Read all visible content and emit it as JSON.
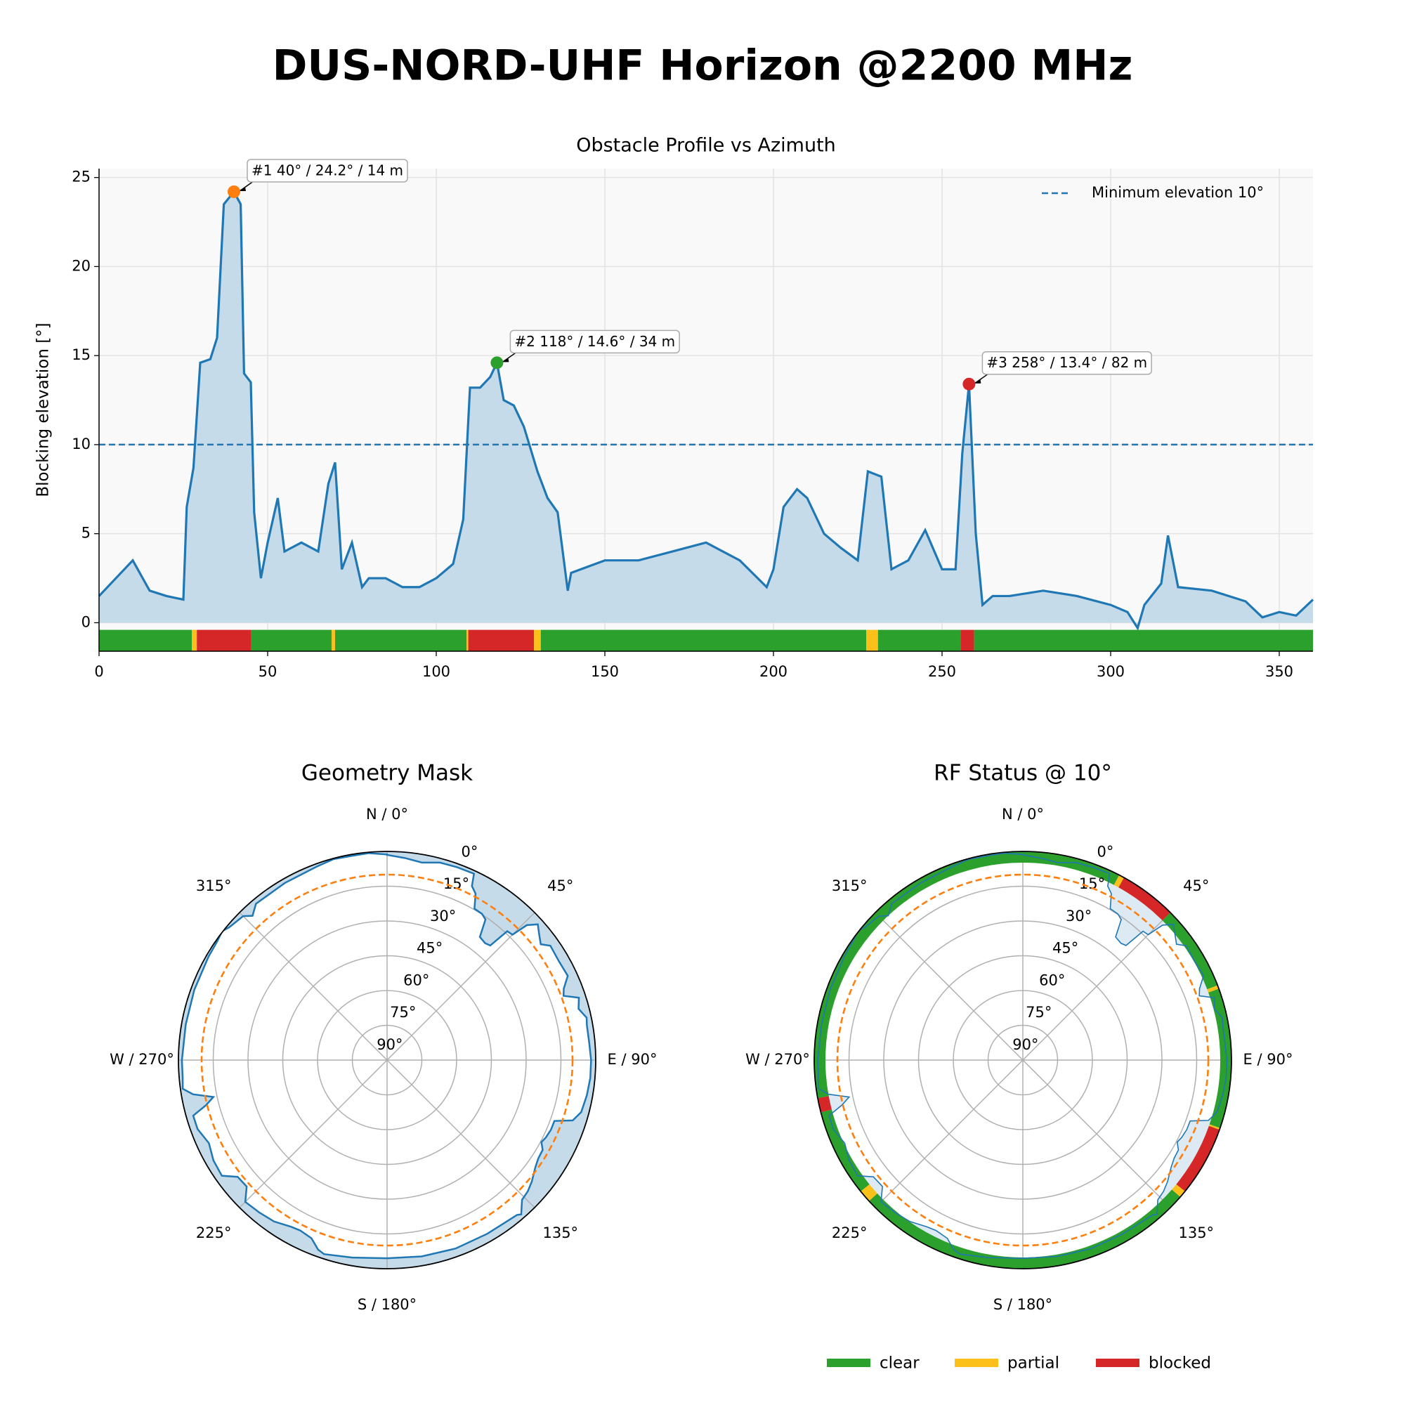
{
  "title": "DUS-NORD-UHF Horizon @2200 MHz",
  "chart_data": [
    {
      "type": "line",
      "title": "Obstacle Profile vs Azimuth",
      "ylabel": "Blocking elevation [°]",
      "color": "#1f77b4",
      "fill": "#c6dbea",
      "x": [
        0,
        5,
        10,
        15,
        20,
        25,
        26,
        28,
        30,
        33,
        35,
        37,
        40,
        42,
        43,
        45,
        46,
        48,
        50,
        53,
        55,
        60,
        65,
        68,
        70,
        72,
        75,
        78,
        80,
        85,
        90,
        95,
        100,
        105,
        108,
        110,
        113,
        116,
        118,
        120,
        123,
        126,
        130,
        133,
        136,
        139,
        140,
        150,
        160,
        170,
        180,
        190,
        198,
        200,
        203,
        207,
        210,
        215,
        220,
        225,
        228,
        232,
        235,
        240,
        245,
        250,
        254,
        256,
        258,
        260,
        262,
        265,
        270,
        280,
        290,
        300,
        305,
        308,
        310,
        315,
        317,
        320,
        330,
        340,
        345,
        350,
        355,
        360
      ],
      "values": [
        1.5,
        2.5,
        3.5,
        1.8,
        1.5,
        1.3,
        6.5,
        8.7,
        14.6,
        14.8,
        16,
        23.5,
        24.2,
        23.5,
        14,
        13.5,
        6.2,
        2.5,
        4.5,
        7,
        4,
        4.5,
        4,
        7.8,
        9,
        3,
        4.5,
        2,
        2.5,
        2.5,
        2,
        2,
        2.5,
        3.3,
        5.8,
        13.2,
        13.2,
        13.8,
        14.6,
        12.5,
        12.2,
        11,
        8.5,
        7,
        6.2,
        1.8,
        2.8,
        3.5,
        3.5,
        4,
        4.5,
        3.5,
        2,
        3,
        6.5,
        7.5,
        7,
        5,
        4.2,
        3.5,
        8.5,
        8.2,
        3,
        3.5,
        5.2,
        3,
        3,
        9.5,
        13.4,
        5,
        1,
        1.5,
        1.5,
        1.8,
        1.5,
        1,
        0.6,
        -0.3,
        1,
        2.2,
        4.9,
        2,
        1.8,
        1.2,
        0.3,
        0.6,
        0.4,
        1.3
      ],
      "xlim": [
        0,
        360
      ],
      "xticks": [
        0,
        50,
        100,
        150,
        200,
        250,
        300,
        350
      ],
      "ylim": [
        -1.6,
        25.5
      ],
      "yticks": [
        0,
        5,
        10,
        15,
        20,
        25
      ],
      "grid": true,
      "hline": {
        "value": 10,
        "label": "Minimum elevation 10°",
        "color": "#1f77b4"
      },
      "annotations": [
        {
          "text": "#1 40° / 24.2° / 14 m",
          "x": 40,
          "y": 24.2,
          "color": "#ff7f0e"
        },
        {
          "text": "#2 118° / 14.6° / 34 m",
          "x": 118,
          "y": 14.6,
          "color": "#2ca02c"
        },
        {
          "text": "#3 258° / 13.4° / 82 m",
          "x": 258,
          "y": 13.4,
          "color": "#d62728"
        }
      ],
      "status_bands": [
        {
          "start": 0,
          "end": 27.5,
          "status": "clear"
        },
        {
          "start": 27.5,
          "end": 29,
          "status": "partial"
        },
        {
          "start": 29,
          "end": 45,
          "status": "blocked"
        },
        {
          "start": 45,
          "end": 69,
          "status": "clear"
        },
        {
          "start": 69,
          "end": 70,
          "status": "partial"
        },
        {
          "start": 70,
          "end": 109,
          "status": "clear"
        },
        {
          "start": 109,
          "end": 109.5,
          "status": "partial"
        },
        {
          "start": 109.5,
          "end": 129,
          "status": "blocked"
        },
        {
          "start": 129,
          "end": 131,
          "status": "partial"
        },
        {
          "start": 131,
          "end": 227.5,
          "status": "clear"
        },
        {
          "start": 227.5,
          "end": 231,
          "status": "partial"
        },
        {
          "start": 231,
          "end": 255.5,
          "status": "clear"
        },
        {
          "start": 255.5,
          "end": 259.5,
          "status": "blocked"
        },
        {
          "start": 259.5,
          "end": 360,
          "status": "clear"
        }
      ],
      "legend": [
        {
          "name": "clear",
          "color": "#2ca02c"
        },
        {
          "name": "partial",
          "color": "#fbc01a"
        },
        {
          "name": "blocked",
          "color": "#d62728"
        }
      ]
    },
    {
      "type": "polar",
      "title": "Geometry Mask",
      "mask_color": "#ff7f0e",
      "mask": 10,
      "rlim": [
        90,
        0
      ],
      "rticks": [
        {
          "value": 0,
          "label": "0°"
        },
        {
          "value": 15,
          "label": "15°"
        },
        {
          "value": 30,
          "label": "30°"
        },
        {
          "value": 45,
          "label": "45°"
        },
        {
          "value": 60,
          "label": "60°"
        },
        {
          "value": 75,
          "label": "75°"
        },
        {
          "value": 90,
          "label": "90°"
        }
      ],
      "thetaticks": [
        {
          "value": 0,
          "label": "N / 0°"
        },
        {
          "value": 45,
          "label": "45°"
        },
        {
          "value": 90,
          "label": "E / 90°"
        },
        {
          "value": 135,
          "label": "135°"
        },
        {
          "value": 180,
          "label": "S / 180°"
        },
        {
          "value": 225,
          "label": "225°"
        },
        {
          "value": 270,
          "label": "W / 270°"
        },
        {
          "value": 315,
          "label": "315°"
        }
      ]
    },
    {
      "type": "polar",
      "title": "RF Status @ 10°",
      "mask_color": "#ff7f0e",
      "mask": 10,
      "status_ring": true,
      "rlim": [
        90,
        0
      ],
      "rticks": [
        {
          "value": 0,
          "label": "0°"
        },
        {
          "value": 15,
          "label": "15°"
        },
        {
          "value": 30,
          "label": "30°"
        },
        {
          "value": 45,
          "label": "45°"
        },
        {
          "value": 60,
          "label": "60°"
        },
        {
          "value": 75,
          "label": "75°"
        },
        {
          "value": 90,
          "label": "90°"
        }
      ],
      "thetaticks": [
        {
          "value": 0,
          "label": "N / 0°"
        },
        {
          "value": 45,
          "label": "45°"
        },
        {
          "value": 90,
          "label": "E / 90°"
        },
        {
          "value": 135,
          "label": "135°"
        },
        {
          "value": 180,
          "label": "S / 180°"
        },
        {
          "value": 225,
          "label": "225°"
        },
        {
          "value": 270,
          "label": "W / 270°"
        },
        {
          "value": 315,
          "label": "315°"
        }
      ]
    }
  ]
}
